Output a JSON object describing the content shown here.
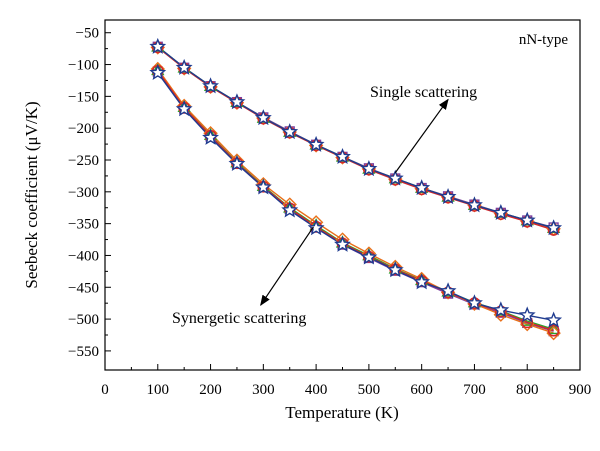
{
  "chart_data": {
    "type": "line",
    "xlabel": "Temperature (K)",
    "ylabel": "Seebeck coefficient (μV/K)",
    "legend_text": "nN-type",
    "legend_placement": "top-right",
    "xlim": [
      0,
      900
    ],
    "ylim": [
      -580,
      -30
    ],
    "xticks": [
      0,
      100,
      200,
      300,
      400,
      500,
      600,
      700,
      800,
      900
    ],
    "yticks": [
      -50,
      -100,
      -150,
      -200,
      -250,
      -300,
      -350,
      -400,
      -450,
      -500,
      -550
    ],
    "grid": false,
    "x": [
      100,
      150,
      200,
      250,
      300,
      350,
      400,
      450,
      500,
      550,
      600,
      650,
      700,
      750,
      800,
      850
    ],
    "colors": {
      "red": "#d62728",
      "orange": "#e8701a",
      "green": "#2ca02c",
      "purple": "#7a3fa0",
      "blue": "#1f3b8f",
      "yellow": "#e3c21b"
    },
    "series": [
      {
        "group": "single",
        "color": "#d62728",
        "marker": "circle",
        "values": [
          -73,
          -106,
          -135,
          -160,
          -185,
          -207,
          -227,
          -246,
          -265,
          -281,
          -296,
          -309,
          -322,
          -335,
          -347,
          -360
        ]
      },
      {
        "group": "single",
        "color": "#e8701a",
        "marker": "diamond",
        "values": [
          -73,
          -106,
          -135,
          -160,
          -184,
          -206,
          -227,
          -246,
          -264,
          -280,
          -295,
          -308,
          -321,
          -334,
          -346,
          -358
        ]
      },
      {
        "group": "single",
        "color": "#2ca02c",
        "marker": "triangle",
        "values": [
          -72,
          -105,
          -134,
          -159,
          -184,
          -206,
          -226,
          -245,
          -264,
          -279,
          -294,
          -308,
          -321,
          -333,
          -345,
          -357
        ]
      },
      {
        "group": "single",
        "color": "#7a3fa0",
        "marker": "square",
        "values": [
          -72,
          -105,
          -134,
          -159,
          -183,
          -205,
          -226,
          -245,
          -263,
          -279,
          -294,
          -307,
          -320,
          -333,
          -345,
          -356
        ]
      },
      {
        "group": "single",
        "color": "#1f3b8f",
        "marker": "star",
        "values": [
          -72,
          -105,
          -134,
          -159,
          -184,
          -206,
          -226,
          -245,
          -264,
          -279,
          -294,
          -308,
          -321,
          -333,
          -345,
          -357
        ]
      },
      {
        "group": "synergetic",
        "color": "#d62728",
        "marker": "circle",
        "values": [
          -110,
          -168,
          -212,
          -255,
          -292,
          -326,
          -355,
          -381,
          -402,
          -422,
          -440,
          -458,
          -475,
          -488,
          -505,
          -518
        ]
      },
      {
        "group": "synergetic",
        "color": "#e8701a",
        "marker": "diamond",
        "values": [
          -107,
          -165,
          -208,
          -251,
          -288,
          -320,
          -348,
          -375,
          -397,
          -418,
          -437,
          -458,
          -476,
          -493,
          -508,
          -522
        ]
      },
      {
        "group": "synergetic",
        "color": "#2ca02c",
        "marker": "triangle",
        "values": [
          -109,
          -167,
          -211,
          -254,
          -291,
          -325,
          -353,
          -380,
          -400,
          -421,
          -439,
          -457,
          -474,
          -487,
          -503,
          -516
        ]
      },
      {
        "group": "synergetic",
        "color": "#7a3fa0",
        "marker": "square",
        "values": [
          -111,
          -169,
          -213,
          -256,
          -293,
          -327,
          -356,
          -383,
          -404,
          -424,
          -442,
          -460,
          -477,
          -490,
          -506,
          -519
        ]
      },
      {
        "group": "synergetic",
        "color": "#1f3b8f",
        "marker": "star",
        "values": [
          -113,
          -170,
          -215,
          -256,
          -293,
          -329,
          -357,
          -383,
          -403,
          -423,
          -442,
          -456,
          -475,
          -486,
          -494,
          -502
        ]
      }
    ],
    "annotations": [
      {
        "text": "Single scattering",
        "arrow_from": [
          550,
          -270
        ],
        "arrow_to": [
          650,
          -155
        ]
      },
      {
        "text": "Synergetic scattering",
        "arrow_from": [
          395,
          -355
        ],
        "arrow_to": [
          295,
          -478
        ]
      }
    ]
  }
}
